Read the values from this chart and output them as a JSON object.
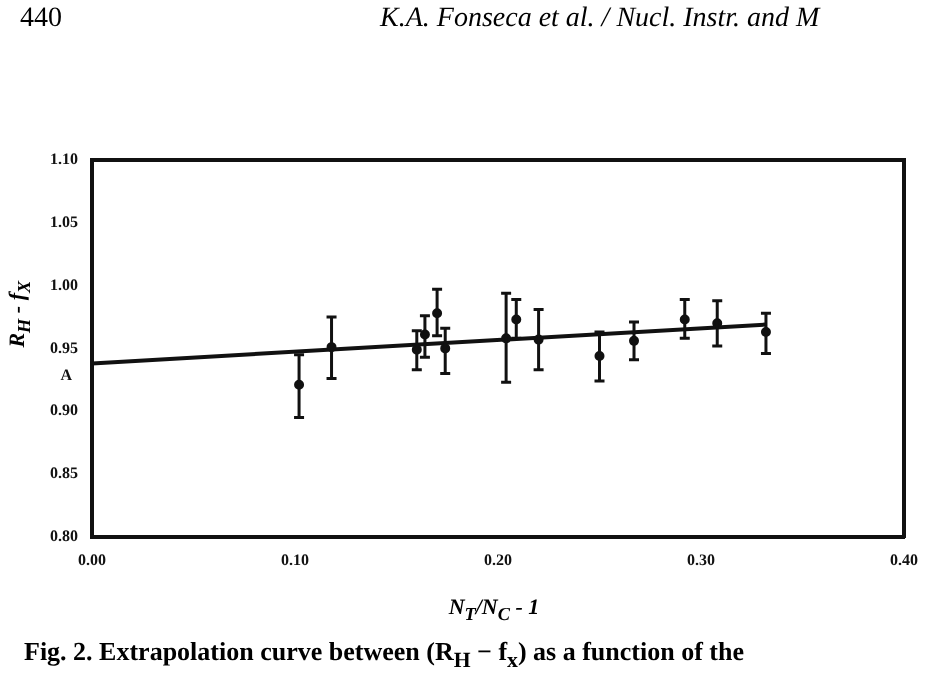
{
  "chart_data": {
    "type": "scatter",
    "xlabel": "N$_{T}$/N$_{C}$ - 1",
    "ylabel": "R$_{H}$ - f$_{X}$",
    "xlim": [
      0,
      0.4
    ],
    "xticks": [
      {
        "value": 0,
        "label": "0.00"
      },
      {
        "value": 0.1,
        "label": "0.10"
      },
      {
        "value": 0.2,
        "label": "0.20"
      },
      {
        "value": 0.3,
        "label": "0.30"
      },
      {
        "value": 0.4,
        "label": "0.40"
      }
    ],
    "ylim": [
      0.8,
      1.1
    ],
    "yticks": [
      {
        "value": 0.8,
        "label": "0.80"
      },
      {
        "value": 0.85,
        "label": "0.85"
      },
      {
        "value": 0.9,
        "label": "0.90"
      },
      {
        "value": 0.95,
        "label": "0.95"
      },
      {
        "value": 1.0,
        "label": "1.00"
      },
      {
        "value": 1.05,
        "label": "1.05"
      },
      {
        "value": 1.1,
        "label": "1.10"
      }
    ],
    "grid": false,
    "legend": false,
    "marker": "circle",
    "series": [
      {
        "color": "#111111",
        "x": [
          0.102,
          0.118,
          0.16,
          0.164,
          0.17,
          0.174,
          0.204,
          0.209,
          0.22,
          0.25,
          0.267,
          0.292,
          0.308,
          0.332
        ],
        "values": [
          0.921,
          0.951,
          0.949,
          0.961,
          0.978,
          0.95,
          0.958,
          0.973,
          0.957,
          0.944,
          0.956,
          0.973,
          0.97,
          0.963
        ],
        "errors": [
          [
            0.895,
            0.945
          ],
          [
            0.926,
            0.975
          ],
          [
            0.933,
            0.964
          ],
          [
            0.943,
            0.976
          ],
          [
            0.96,
            0.997
          ],
          [
            0.93,
            0.966
          ],
          [
            0.923,
            0.994
          ],
          [
            0.958,
            0.989
          ],
          [
            0.933,
            0.981
          ],
          [
            0.924,
            0.963
          ],
          [
            0.941,
            0.971
          ],
          [
            0.958,
            0.989
          ],
          [
            0.952,
            0.988
          ],
          [
            0.946,
            0.978
          ]
        ]
      },
      {
        "type": "line",
        "color": "#111111",
        "x": [
          0,
          0.332
        ],
        "values": [
          0.938,
          0.969
        ],
        "marker": "none",
        "line_style": "solid"
      }
    ],
    "annotations": [
      "440",
      "K.A. Fonseca et al. / Nucl. Instr. and M",
      {
        "text": "A",
        "x": 0,
        "y": 0.938
      },
      "Fig. 2. Extrapolation curve between (R$_{H}$ − f$_{x}$) as a function of the"
    ]
  }
}
